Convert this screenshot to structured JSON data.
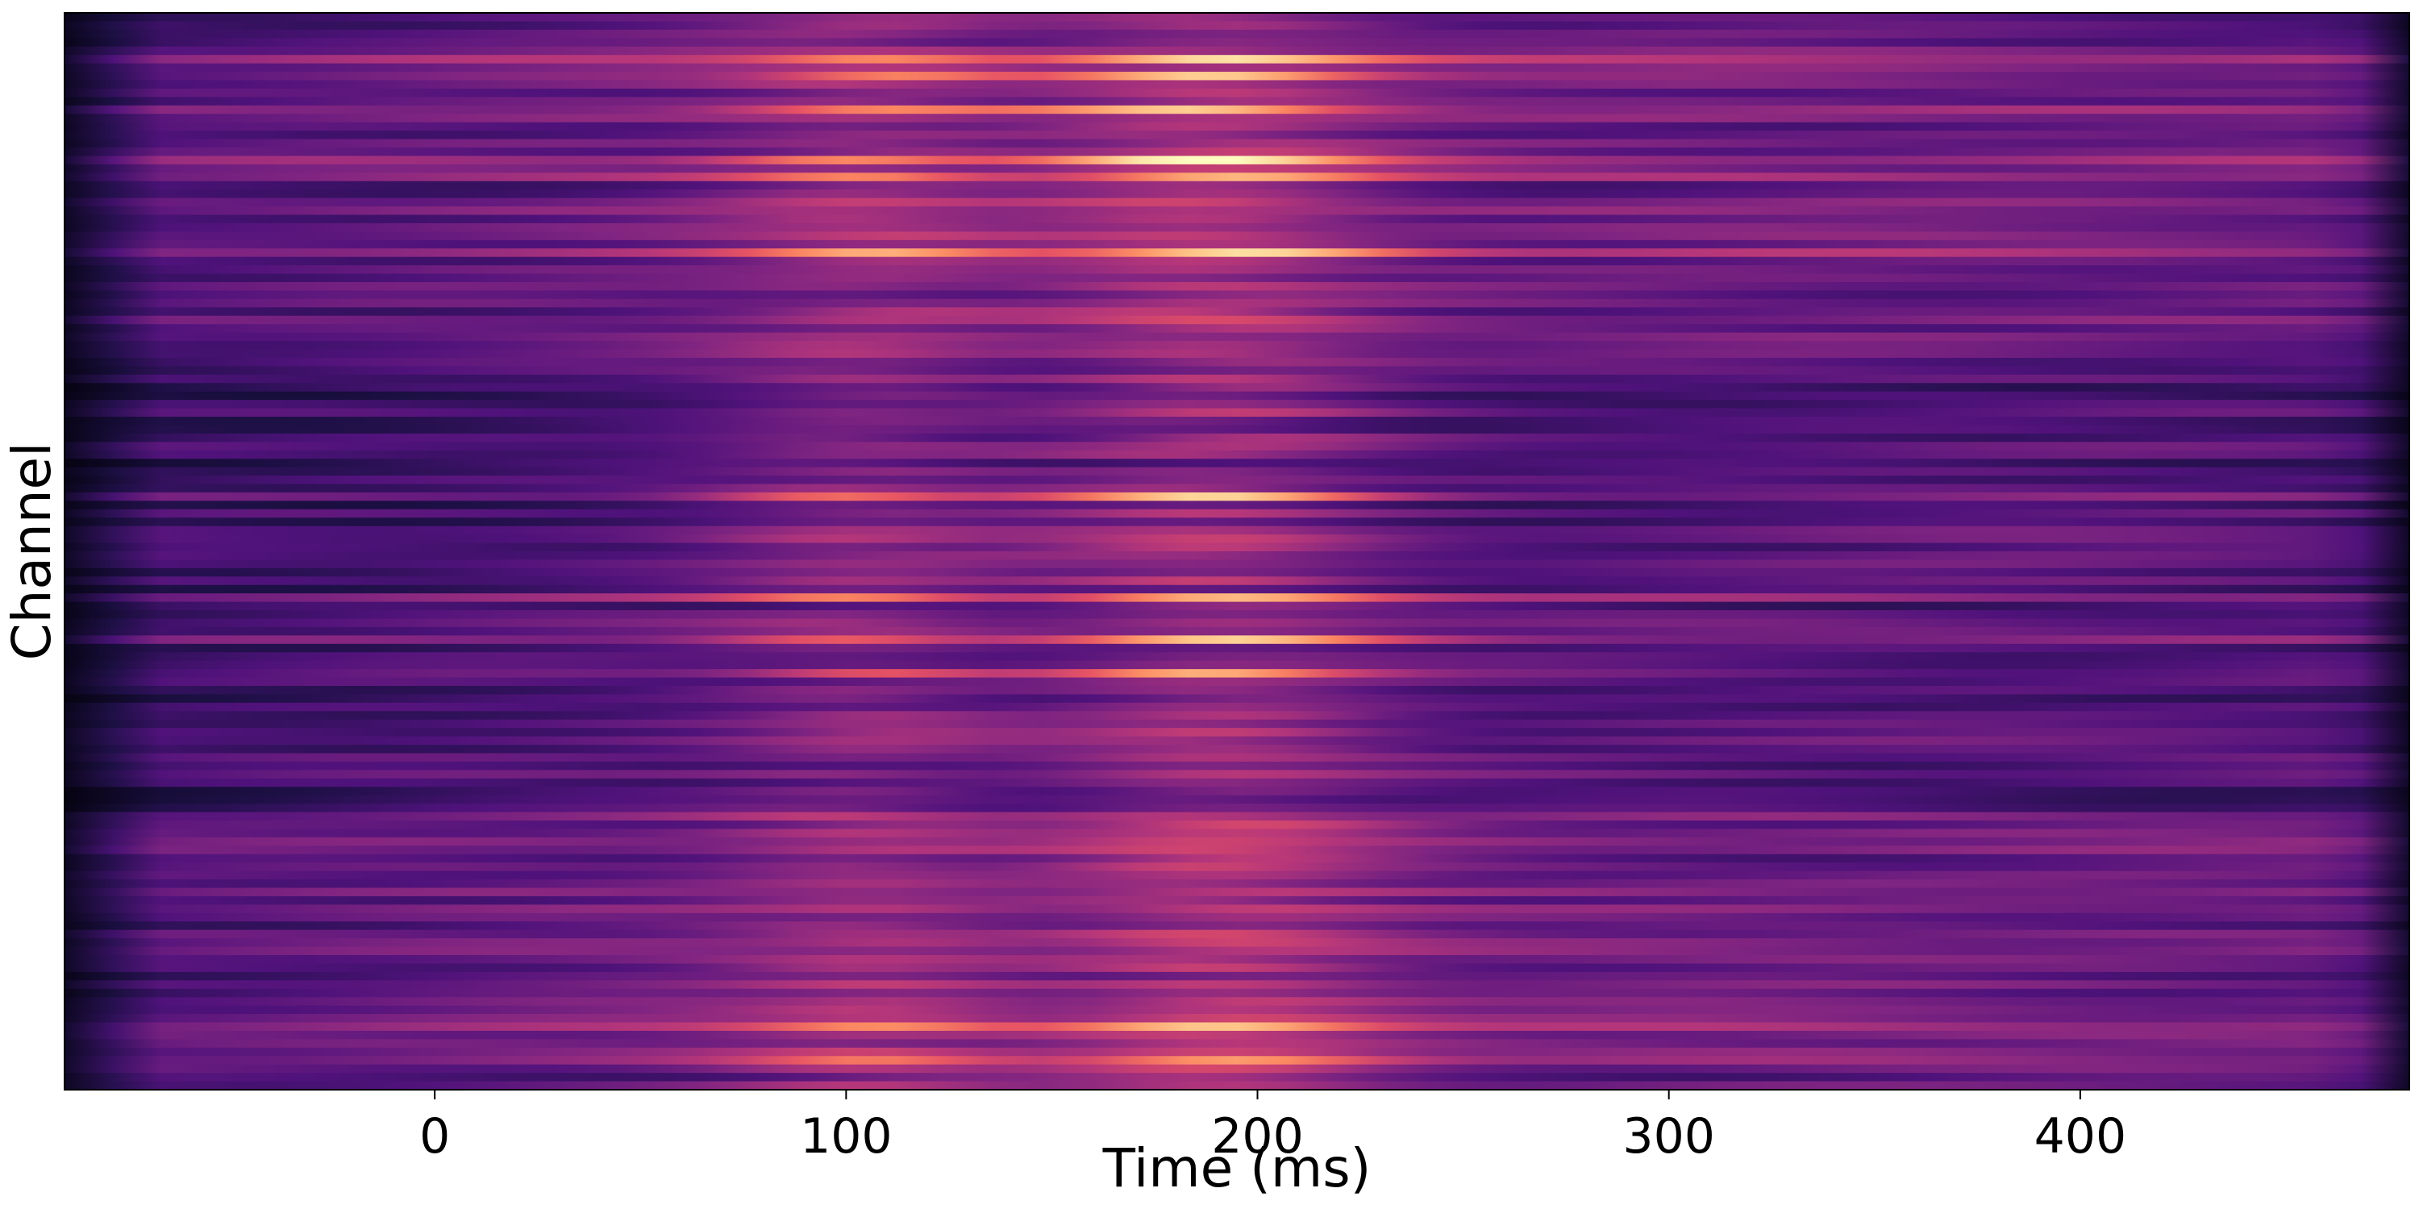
{
  "chart_data": {
    "type": "heatmap",
    "title": "",
    "xlabel": "Time (ms)",
    "ylabel": "Channel",
    "x_range": [
      -90,
      480
    ],
    "x_ticks": [
      0,
      100,
      200,
      300,
      400
    ],
    "x_tick_labels": [
      "0",
      "100",
      "200",
      "300",
      "400"
    ],
    "y_ticks": [],
    "n_channels": 128,
    "colormap": "magma",
    "grid": false,
    "legend": "none",
    "peak_times_ms": [
      105,
      190
    ],
    "bright_channel_rows": [
      5,
      7,
      11,
      17,
      19,
      28,
      57,
      69,
      74,
      78,
      120,
      124
    ]
  }
}
